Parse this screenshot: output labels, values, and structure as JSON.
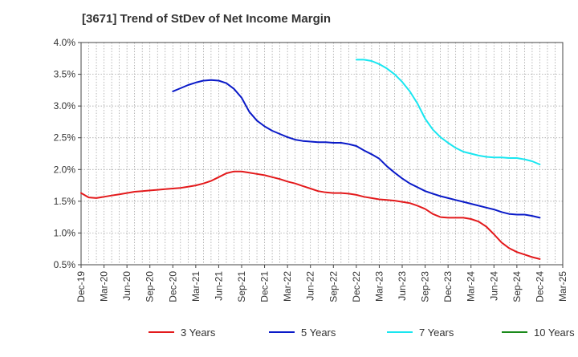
{
  "chart_data": {
    "type": "line",
    "title": "[3671]  Trend of StDev of Net Income Margin",
    "xlabel": "",
    "ylabel": "",
    "ylim": [
      0.5,
      4.0
    ],
    "y_ticks": [
      "0.5%",
      "1.0%",
      "1.5%",
      "2.0%",
      "2.5%",
      "3.0%",
      "3.5%",
      "4.0%"
    ],
    "y_tick_values": [
      0.5,
      1.0,
      1.5,
      2.0,
      2.5,
      3.0,
      3.5,
      4.0
    ],
    "x_ticks": [
      "Dec-19",
      "Mar-20",
      "Jun-20",
      "Sep-20",
      "Dec-20",
      "Mar-21",
      "Jun-21",
      "Sep-21",
      "Dec-21",
      "Mar-22",
      "Jun-22",
      "Sep-22",
      "Dec-22",
      "Mar-23",
      "Jun-23",
      "Sep-23",
      "Dec-23",
      "Mar-24",
      "Jun-24",
      "Sep-24",
      "Dec-24",
      "Mar-25"
    ],
    "grid": true,
    "legend_position": "bottom",
    "series": [
      {
        "name": "3 Years",
        "color": "#e31a1c",
        "x": [
          "Dec-19",
          "Jan-20",
          "Feb-20",
          "Mar-20",
          "Apr-20",
          "May-20",
          "Jun-20",
          "Jul-20",
          "Aug-20",
          "Sep-20",
          "Oct-20",
          "Nov-20",
          "Dec-20",
          "Jan-21",
          "Feb-21",
          "Mar-21",
          "Apr-21",
          "May-21",
          "Jun-21",
          "Jul-21",
          "Aug-21",
          "Sep-21",
          "Oct-21",
          "Nov-21",
          "Dec-21",
          "Jan-22",
          "Feb-22",
          "Mar-22",
          "Apr-22",
          "May-22",
          "Jun-22",
          "Jul-22",
          "Aug-22",
          "Sep-22",
          "Oct-22",
          "Nov-22",
          "Dec-22",
          "Jan-23",
          "Feb-23",
          "Mar-23",
          "Apr-23",
          "May-23",
          "Jun-23",
          "Jul-23",
          "Aug-23",
          "Sep-23",
          "Oct-23",
          "Nov-23",
          "Dec-23",
          "Jan-24",
          "Feb-24",
          "Mar-24",
          "Apr-24",
          "May-24",
          "Jun-24",
          "Jul-24",
          "Aug-24",
          "Sep-24",
          "Oct-24",
          "Nov-24",
          "Dec-24"
        ],
        "values": [
          1.63,
          1.56,
          1.55,
          1.57,
          1.59,
          1.61,
          1.63,
          1.65,
          1.66,
          1.67,
          1.68,
          1.69,
          1.7,
          1.71,
          1.73,
          1.75,
          1.78,
          1.82,
          1.88,
          1.94,
          1.97,
          1.97,
          1.95,
          1.93,
          1.91,
          1.88,
          1.85,
          1.81,
          1.78,
          1.74,
          1.7,
          1.66,
          1.64,
          1.63,
          1.63,
          1.62,
          1.6,
          1.57,
          1.55,
          1.53,
          1.52,
          1.51,
          1.49,
          1.47,
          1.43,
          1.38,
          1.3,
          1.25,
          1.24,
          1.24,
          1.24,
          1.22,
          1.18,
          1.1,
          0.98,
          0.85,
          0.76,
          0.7,
          0.66,
          0.62,
          0.59
        ]
      },
      {
        "name": "5 Years",
        "color": "#0a1ac8",
        "x": [
          "Dec-20",
          "Jan-21",
          "Feb-21",
          "Mar-21",
          "Apr-21",
          "May-21",
          "Jun-21",
          "Jul-21",
          "Aug-21",
          "Sep-21",
          "Oct-21",
          "Nov-21",
          "Dec-21",
          "Jan-22",
          "Feb-22",
          "Mar-22",
          "Apr-22",
          "May-22",
          "Jun-22",
          "Jul-22",
          "Aug-22",
          "Sep-22",
          "Oct-22",
          "Nov-22",
          "Dec-22",
          "Jan-23",
          "Feb-23",
          "Mar-23",
          "Apr-23",
          "May-23",
          "Jun-23",
          "Jul-23",
          "Aug-23",
          "Sep-23",
          "Oct-23",
          "Nov-23",
          "Dec-23",
          "Jan-24",
          "Feb-24",
          "Mar-24",
          "Apr-24",
          "May-24",
          "Jun-24",
          "Jul-24",
          "Aug-24",
          "Sep-24",
          "Oct-24",
          "Nov-24",
          "Dec-24"
        ],
        "values": [
          3.23,
          3.28,
          3.33,
          3.37,
          3.4,
          3.41,
          3.4,
          3.36,
          3.27,
          3.13,
          2.91,
          2.77,
          2.68,
          2.61,
          2.56,
          2.51,
          2.47,
          2.45,
          2.44,
          2.43,
          2.43,
          2.42,
          2.42,
          2.4,
          2.37,
          2.3,
          2.24,
          2.17,
          2.05,
          1.95,
          1.86,
          1.78,
          1.72,
          1.66,
          1.62,
          1.58,
          1.55,
          1.52,
          1.49,
          1.46,
          1.43,
          1.4,
          1.37,
          1.33,
          1.3,
          1.29,
          1.29,
          1.27,
          1.24
        ]
      },
      {
        "name": "7 Years",
        "color": "#19e6f0",
        "x": [
          "Dec-22",
          "Jan-23",
          "Feb-23",
          "Mar-23",
          "Apr-23",
          "May-23",
          "Jun-23",
          "Jul-23",
          "Aug-23",
          "Sep-23",
          "Oct-23",
          "Nov-23",
          "Dec-23",
          "Jan-24",
          "Feb-24",
          "Mar-24",
          "Apr-24",
          "May-24",
          "Jun-24",
          "Jul-24",
          "Aug-24",
          "Sep-24",
          "Oct-24",
          "Nov-24",
          "Dec-24"
        ],
        "values": [
          3.73,
          3.73,
          3.71,
          3.66,
          3.59,
          3.5,
          3.38,
          3.23,
          3.04,
          2.8,
          2.63,
          2.51,
          2.42,
          2.34,
          2.28,
          2.25,
          2.22,
          2.2,
          2.19,
          2.19,
          2.18,
          2.18,
          2.16,
          2.13,
          2.08
        ]
      },
      {
        "name": "10 Years",
        "color": "#1a8a1a",
        "x": [],
        "values": []
      }
    ]
  }
}
